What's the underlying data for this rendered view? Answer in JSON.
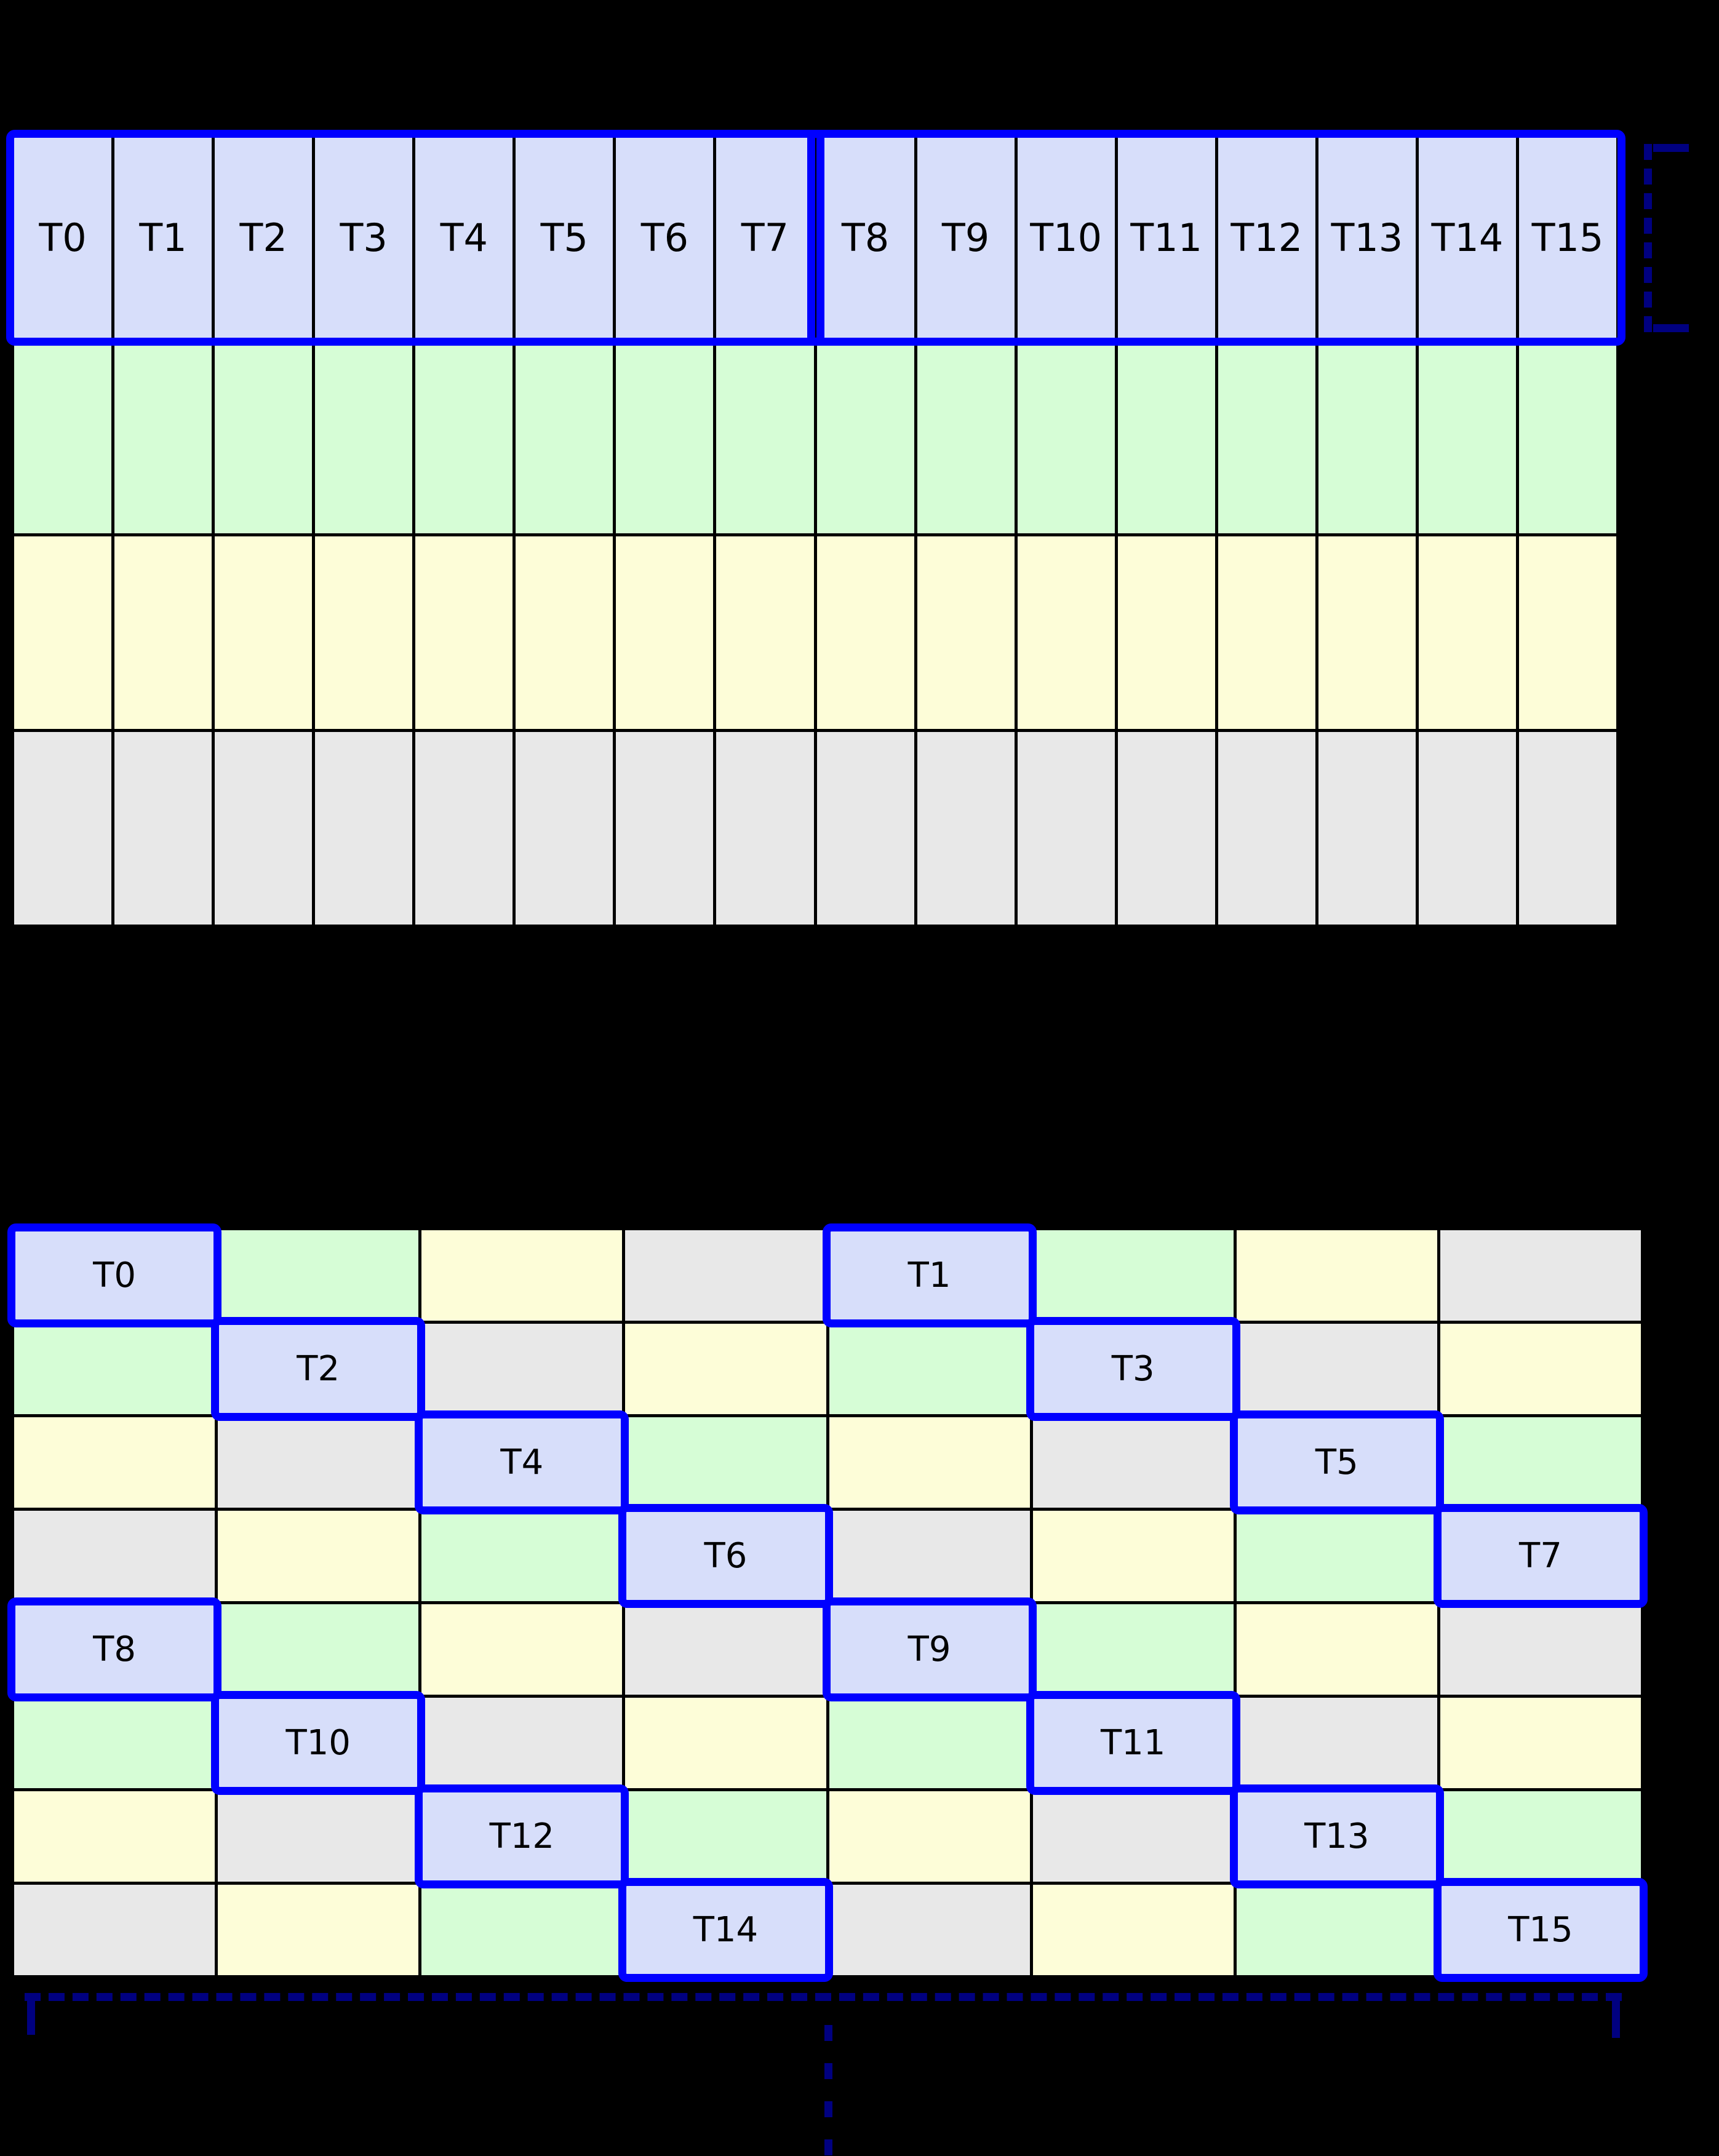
{
  "diagram": {
    "colors": {
      "background": "#000000",
      "grid_line": "#000000",
      "thread_fill": "#d7defa",
      "row_green": "#d6fdd6",
      "row_yellow": "#fdfdd8",
      "row_gray": "#e8e8e8",
      "highlight_border": "#0000ff",
      "bracket": "#000080",
      "label_text": "#000000"
    },
    "top_grid": {
      "columns": 16,
      "warp_groups": [
        {
          "threads": [
            "T0",
            "T1",
            "T2",
            "T3",
            "T4",
            "T5",
            "T6",
            "T7"
          ]
        },
        {
          "threads": [
            "T8",
            "T9",
            "T10",
            "T11",
            "T12",
            "T13",
            "T14",
            "T15"
          ]
        }
      ],
      "memory_rows": [
        "green",
        "yellow",
        "gray"
      ]
    },
    "bottom_grid": {
      "columns": 8,
      "rows": [
        [
          {
            "color": "lavender",
            "label": "T0"
          },
          {
            "color": "green",
            "label": ""
          },
          {
            "color": "yellow",
            "label": ""
          },
          {
            "color": "gray",
            "label": ""
          },
          {
            "color": "lavender",
            "label": "T1"
          },
          {
            "color": "green",
            "label": ""
          },
          {
            "color": "yellow",
            "label": ""
          },
          {
            "color": "gray",
            "label": ""
          }
        ],
        [
          {
            "color": "green",
            "label": ""
          },
          {
            "color": "lavender",
            "label": "T2"
          },
          {
            "color": "gray",
            "label": ""
          },
          {
            "color": "yellow",
            "label": ""
          },
          {
            "color": "green",
            "label": ""
          },
          {
            "color": "lavender",
            "label": "T3"
          },
          {
            "color": "gray",
            "label": ""
          },
          {
            "color": "yellow",
            "label": ""
          }
        ],
        [
          {
            "color": "yellow",
            "label": ""
          },
          {
            "color": "gray",
            "label": ""
          },
          {
            "color": "lavender",
            "label": "T4"
          },
          {
            "color": "green",
            "label": ""
          },
          {
            "color": "yellow",
            "label": ""
          },
          {
            "color": "gray",
            "label": ""
          },
          {
            "color": "lavender",
            "label": "T5"
          },
          {
            "color": "green",
            "label": ""
          }
        ],
        [
          {
            "color": "gray",
            "label": ""
          },
          {
            "color": "yellow",
            "label": ""
          },
          {
            "color": "green",
            "label": ""
          },
          {
            "color": "lavender",
            "label": "T6"
          },
          {
            "color": "gray",
            "label": ""
          },
          {
            "color": "yellow",
            "label": ""
          },
          {
            "color": "green",
            "label": ""
          },
          {
            "color": "lavender",
            "label": "T7"
          }
        ],
        [
          {
            "color": "lavender",
            "label": "T8"
          },
          {
            "color": "green",
            "label": ""
          },
          {
            "color": "yellow",
            "label": ""
          },
          {
            "color": "gray",
            "label": ""
          },
          {
            "color": "lavender",
            "label": "T9"
          },
          {
            "color": "green",
            "label": ""
          },
          {
            "color": "yellow",
            "label": ""
          },
          {
            "color": "gray",
            "label": ""
          }
        ],
        [
          {
            "color": "green",
            "label": ""
          },
          {
            "color": "lavender",
            "label": "T10"
          },
          {
            "color": "gray",
            "label": ""
          },
          {
            "color": "yellow",
            "label": ""
          },
          {
            "color": "green",
            "label": ""
          },
          {
            "color": "lavender",
            "label": "T11"
          },
          {
            "color": "gray",
            "label": ""
          },
          {
            "color": "yellow",
            "label": ""
          }
        ],
        [
          {
            "color": "yellow",
            "label": ""
          },
          {
            "color": "gray",
            "label": ""
          },
          {
            "color": "lavender",
            "label": "T12"
          },
          {
            "color": "green",
            "label": ""
          },
          {
            "color": "yellow",
            "label": ""
          },
          {
            "color": "gray",
            "label": ""
          },
          {
            "color": "lavender",
            "label": "T13"
          },
          {
            "color": "green",
            "label": ""
          }
        ],
        [
          {
            "color": "gray",
            "label": ""
          },
          {
            "color": "yellow",
            "label": ""
          },
          {
            "color": "green",
            "label": ""
          },
          {
            "color": "lavender",
            "label": "T14"
          },
          {
            "color": "gray",
            "label": ""
          },
          {
            "color": "yellow",
            "label": ""
          },
          {
            "color": "green",
            "label": ""
          },
          {
            "color": "lavender",
            "label": "T15"
          }
        ]
      ]
    }
  }
}
